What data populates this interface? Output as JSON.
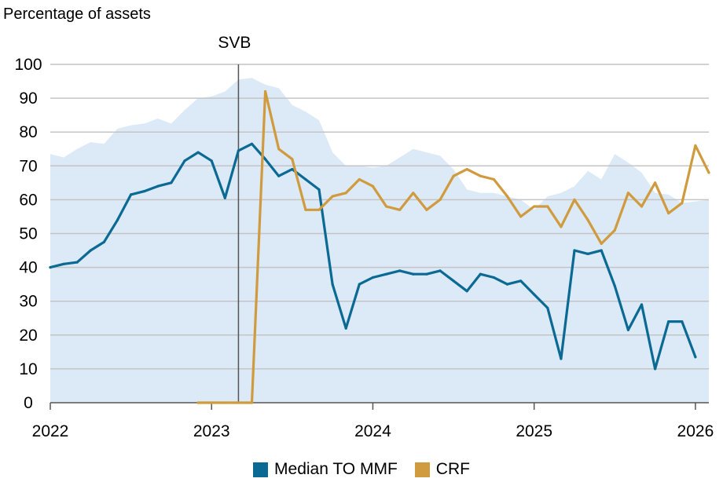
{
  "chart_data": {
    "type": "line",
    "title": "",
    "ylabel": "Percentage of assets",
    "xlabel": "",
    "ylim": [
      0,
      100
    ],
    "yticks": [
      0,
      10,
      20,
      30,
      40,
      50,
      60,
      70,
      80,
      90,
      100
    ],
    "xlim": [
      "2022-01",
      "2026-02"
    ],
    "xticks": [
      "2022",
      "2023",
      "2024",
      "2025",
      "2026"
    ],
    "grid": true,
    "legend_position": "bottom-center",
    "annotations": [
      {
        "text": "SVB",
        "x": "2023-03"
      }
    ],
    "colors": {
      "median": "#0b6a94",
      "crf": "#d09b3e",
      "band": "#dce9f6",
      "grid": "#c4c4c4",
      "vline": "#555555"
    },
    "band": {
      "name": "",
      "x": [
        "2022-01",
        "2022-02",
        "2022-03",
        "2022-04",
        "2022-05",
        "2022-06",
        "2022-07",
        "2022-08",
        "2022-09",
        "2022-10",
        "2022-11",
        "2022-12",
        "2023-01",
        "2023-02",
        "2023-03",
        "2023-04",
        "2023-05",
        "2023-06",
        "2023-07",
        "2023-08",
        "2023-09",
        "2023-10",
        "2023-11",
        "2023-12",
        "2024-01",
        "2024-02",
        "2024-03",
        "2024-04",
        "2024-05",
        "2024-06",
        "2024-07",
        "2024-08",
        "2024-09",
        "2024-10",
        "2024-11",
        "2024-12",
        "2025-01",
        "2025-02",
        "2025-03",
        "2025-04",
        "2025-05",
        "2025-06",
        "2025-07",
        "2025-08",
        "2025-09",
        "2025-10",
        "2025-11",
        "2025-12",
        "2026-01",
        "2026-02"
      ],
      "values": [
        73.5,
        72.5,
        75,
        77,
        76.5,
        81,
        82,
        82.5,
        84,
        82.5,
        86.5,
        90,
        90.5,
        92,
        95.5,
        96,
        94,
        93,
        88,
        86,
        83.5,
        74,
        70,
        70,
        69.5,
        70,
        72.5,
        75,
        74,
        73,
        69,
        63,
        62,
        62,
        61,
        60,
        57,
        61,
        62,
        64,
        68.5,
        66,
        73.5,
        71,
        68,
        62,
        61.5,
        59,
        59.5,
        60
      ]
    },
    "series": [
      {
        "name": "Median TO MMF",
        "x": [
          "2022-01",
          "2022-02",
          "2022-03",
          "2022-04",
          "2022-05",
          "2022-06",
          "2022-07",
          "2022-08",
          "2022-09",
          "2022-10",
          "2022-11",
          "2022-12",
          "2023-01",
          "2023-02",
          "2023-03",
          "2023-04",
          "2023-05",
          "2023-06",
          "2023-07",
          "2023-08",
          "2023-09",
          "2023-10",
          "2023-11",
          "2023-12",
          "2024-01",
          "2024-02",
          "2024-03",
          "2024-04",
          "2024-05",
          "2024-06",
          "2024-07",
          "2024-08",
          "2024-09",
          "2024-10",
          "2024-11",
          "2024-12",
          "2025-01",
          "2025-02",
          "2025-03",
          "2025-04",
          "2025-05",
          "2025-06",
          "2025-07",
          "2025-08",
          "2025-09",
          "2025-10",
          "2025-11",
          "2025-12",
          "2026-01",
          "2026-02"
        ],
        "values": [
          40,
          41,
          41.5,
          45,
          47.5,
          54,
          61.5,
          62.5,
          64,
          65,
          71.5,
          74,
          71.5,
          60.5,
          74.5,
          76.5,
          72,
          67,
          69,
          66,
          63,
          35,
          22,
          35,
          37,
          38,
          39,
          38,
          38,
          39,
          36,
          33,
          38,
          37,
          35,
          36,
          32,
          28,
          13,
          45,
          44,
          45,
          34.5,
          21.5,
          29,
          10,
          24,
          24,
          13.5,
          null
        ]
      },
      {
        "name": "CRF",
        "x": [
          "2022-12",
          "2023-01",
          "2023-02",
          "2023-03",
          "2023-04",
          "2023-05",
          "2023-06",
          "2023-07",
          "2023-08",
          "2023-09",
          "2023-10",
          "2023-11",
          "2023-12",
          "2024-01",
          "2024-02",
          "2024-03",
          "2024-04",
          "2024-05",
          "2024-06",
          "2024-07",
          "2024-08",
          "2024-09",
          "2024-10",
          "2024-11",
          "2024-12",
          "2025-01",
          "2025-02",
          "2025-03",
          "2025-04",
          "2025-05",
          "2025-06",
          "2025-07",
          "2025-08",
          "2025-09",
          "2025-10",
          "2025-11",
          "2025-12",
          "2026-01",
          "2026-02"
        ],
        "values": [
          0,
          0,
          0,
          0,
          0,
          92,
          75,
          72,
          57,
          57,
          61,
          62,
          66,
          64,
          58,
          57,
          62,
          57,
          60,
          67,
          69,
          67,
          66,
          61,
          55,
          58,
          58,
          52,
          60,
          54,
          47,
          51,
          62,
          58,
          65,
          56,
          59,
          76,
          68
        ]
      }
    ]
  }
}
